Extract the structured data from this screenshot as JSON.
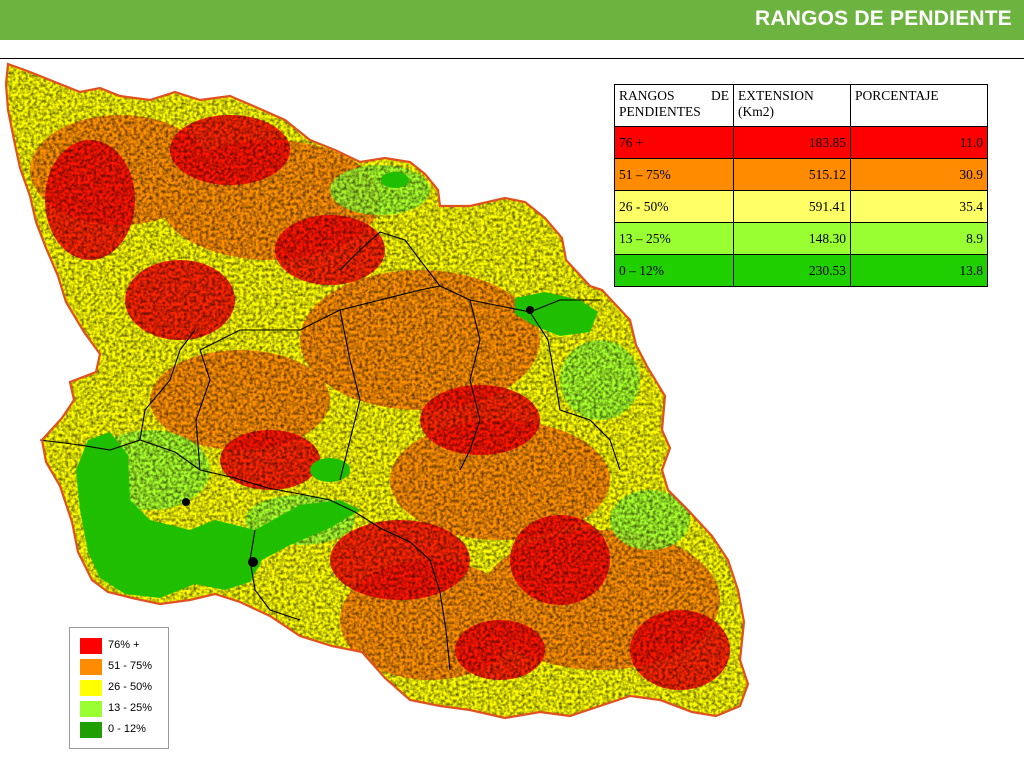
{
  "header": {
    "title": "RANGOS DE PENDIENTE"
  },
  "colors": {
    "header_bg": "#6db33f",
    "class_76_plus": "#ff0000",
    "class_51_75": "#ff8c00",
    "class_26_50": "#ffff00",
    "class_13_25": "#99ff33",
    "class_0_12": "#1fbf00",
    "boundary": "#e05020"
  },
  "table": {
    "headers": [
      "RANGOS DE PENDIENTES",
      "EXTENSION (Km2)",
      "PORCENTAJE"
    ],
    "rows": [
      {
        "range": "76 +",
        "extension": "183.85",
        "percent": "11.0"
      },
      {
        "range": "51 – 75%",
        "extension": "515.12",
        "percent": "30.9"
      },
      {
        "range": "26 - 50%",
        "extension": "591.41",
        "percent": "35.4"
      },
      {
        "range": "13 – 25%",
        "extension": "148.30",
        "percent": "8.9"
      },
      {
        "range": "0 – 12%",
        "extension": "230.53",
        "percent": "13.8"
      }
    ]
  },
  "legend": {
    "items": [
      {
        "label": "76% +",
        "color": "#ff0000"
      },
      {
        "label": "51 - 75%",
        "color": "#ff8c00"
      },
      {
        "label": "26 - 50%",
        "color": "#ffff00"
      },
      {
        "label": "13 - 25%",
        "color": "#99ff33"
      },
      {
        "label": "0 - 12%",
        "color": "#1fbf00"
      }
    ]
  }
}
